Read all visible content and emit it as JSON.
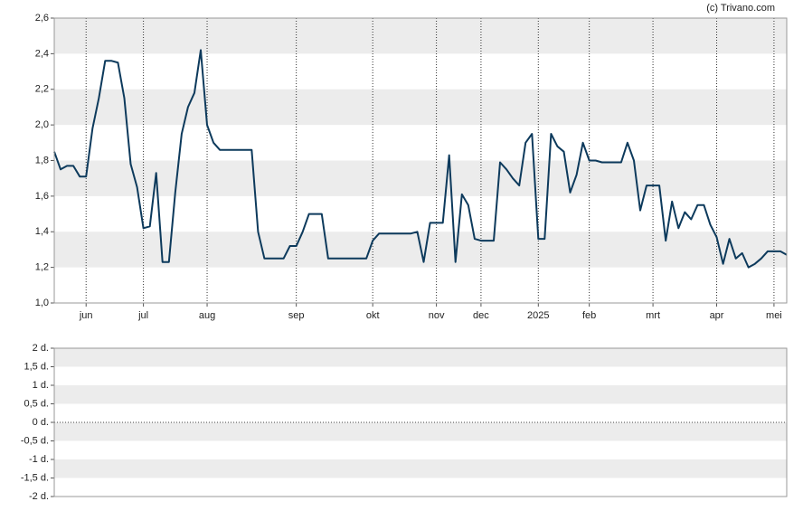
{
  "credit": "(c) Trivano.com",
  "chart_data": [
    {
      "type": "line",
      "color": "#0d3a5c",
      "grid": true,
      "categories": [
        null,
        null,
        null,
        null,
        null,
        "jun",
        null,
        null,
        null,
        null,
        null,
        null,
        null,
        null,
        "jul",
        null,
        null,
        null,
        null,
        null,
        null,
        null,
        null,
        null,
        "aug",
        null,
        null,
        null,
        null,
        null,
        null,
        null,
        null,
        null,
        null,
        null,
        null,
        null,
        "sep",
        null,
        null,
        null,
        null,
        null,
        null,
        null,
        null,
        null,
        null,
        null,
        "okt",
        null,
        null,
        null,
        null,
        null,
        null,
        null,
        null,
        null,
        "nov",
        null,
        null,
        null,
        null,
        null,
        null,
        "dec",
        null,
        null,
        null,
        null,
        null,
        null,
        null,
        null,
        "2025",
        null,
        null,
        null,
        null,
        null,
        null,
        null,
        "feb",
        null,
        null,
        null,
        null,
        null,
        null,
        null,
        null,
        null,
        "mrt",
        null,
        null,
        null,
        null,
        null,
        null,
        null,
        null,
        null,
        "apr",
        null,
        null,
        null,
        null,
        null,
        null,
        null,
        null,
        "mei",
        null,
        null
      ],
      "values": [
        1.85,
        1.75,
        1.77,
        1.77,
        1.71,
        1.71,
        1.98,
        2.15,
        2.36,
        2.36,
        2.35,
        2.15,
        1.78,
        1.65,
        1.42,
        1.43,
        1.73,
        1.23,
        1.23,
        1.62,
        1.95,
        2.1,
        2.18,
        2.42,
        2.0,
        1.9,
        1.86,
        1.86,
        1.86,
        1.86,
        1.86,
        1.86,
        1.4,
        1.25,
        1.25,
        1.25,
        1.25,
        1.32,
        1.32,
        1.4,
        1.5,
        1.5,
        1.5,
        1.25,
        1.25,
        1.25,
        1.25,
        1.25,
        1.25,
        1.25,
        1.35,
        1.39,
        1.39,
        1.39,
        1.39,
        1.39,
        1.39,
        1.4,
        1.23,
        1.45,
        1.45,
        1.45,
        1.83,
        1.23,
        1.61,
        1.55,
        1.36,
        1.35,
        1.35,
        1.35,
        1.79,
        1.75,
        1.7,
        1.66,
        1.9,
        1.95,
        1.36,
        1.36,
        1.95,
        1.88,
        1.85,
        1.62,
        1.72,
        1.9,
        1.8,
        1.8,
        1.79,
        1.79,
        1.79,
        1.79,
        1.9,
        1.8,
        1.52,
        1.66,
        1.66,
        1.66,
        1.35,
        1.57,
        1.42,
        1.51,
        1.47,
        1.55,
        1.55,
        1.44,
        1.37,
        1.22,
        1.36,
        1.25,
        1.28,
        1.2,
        1.22,
        1.25,
        1.29,
        1.29,
        1.29,
        1.27
      ],
      "ylim": [
        1.0,
        2.6
      ],
      "yticks": [
        {
          "value": 1.0,
          "label": "1,0"
        },
        {
          "value": 1.2,
          "label": "1,2"
        },
        {
          "value": 1.4,
          "label": "1,4"
        },
        {
          "value": 1.6,
          "label": "1,6"
        },
        {
          "value": 1.8,
          "label": "1,8"
        },
        {
          "value": 2.0,
          "label": "2,0"
        },
        {
          "value": 2.2,
          "label": "2,2"
        },
        {
          "value": 2.4,
          "label": "2,4"
        },
        {
          "value": 2.6,
          "label": "2,6"
        }
      ]
    },
    {
      "type": "empty",
      "grid": true,
      "ylim": [
        -2,
        2
      ],
      "yticks": [
        {
          "value": -2,
          "label": "-2 d."
        },
        {
          "value": -1.5,
          "label": "-1,5 d."
        },
        {
          "value": -1,
          "label": "-1 d."
        },
        {
          "value": -0.5,
          "label": "-0,5 d."
        },
        {
          "value": 0,
          "label": "0 d."
        },
        {
          "value": 0.5,
          "label": "0,5 d."
        },
        {
          "value": 1,
          "label": "1 d."
        },
        {
          "value": 1.5,
          "label": "1,5 d."
        },
        {
          "value": 2,
          "label": "2 d."
        }
      ]
    }
  ]
}
